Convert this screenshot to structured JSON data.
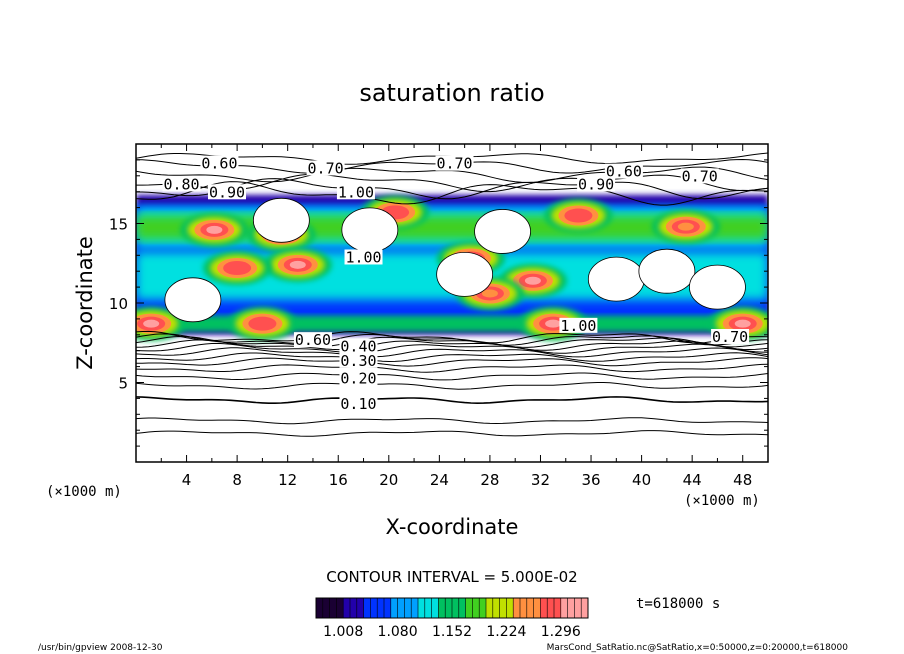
{
  "chart_data": {
    "type": "heatmap",
    "subtype": "filled-contour with line contours",
    "title": "saturation ratio",
    "xlabel": "X-coordinate",
    "ylabel": "Z-coordinate",
    "x_unit": "(×1000 m)",
    "y_unit": "(×1000 m)",
    "xlim": [
      0,
      50
    ],
    "ylim": [
      0,
      20
    ],
    "x_ticks": [
      4,
      8,
      12,
      16,
      20,
      24,
      28,
      32,
      36,
      40,
      44,
      48
    ],
    "y_ticks": [
      5,
      10,
      15
    ],
    "contour_interval_text": "CONTOUR INTERVAL = 5.000E-02",
    "time_text": "t=618000 s",
    "colorbar": {
      "tick_labels": [
        "1.008",
        "1.080",
        "1.152",
        "1.224",
        "1.296"
      ],
      "min": 0.972,
      "max": 1.332,
      "colors": [
        "#1a0033",
        "#2200aa",
        "#0033ff",
        "#00a0ff",
        "#00e0e0",
        "#00c060",
        "#40d020",
        "#c0e000",
        "#ff9040",
        "#ff5050",
        "#ffa0a0"
      ]
    },
    "contour_labels": [
      {
        "text": "0.60",
        "x": 6.6,
        "z": 18.7
      },
      {
        "text": "0.70",
        "x": 15.0,
        "z": 18.4
      },
      {
        "text": "0.70",
        "x": 25.2,
        "z": 18.7
      },
      {
        "text": "0.60",
        "x": 38.6,
        "z": 18.2
      },
      {
        "text": "0.70",
        "x": 44.6,
        "z": 17.9
      },
      {
        "text": "0.80",
        "x": 3.6,
        "z": 17.4
      },
      {
        "text": "0.90",
        "x": 7.2,
        "z": 16.9
      },
      {
        "text": "1.00",
        "x": 17.4,
        "z": 16.9
      },
      {
        "text": "0.90",
        "x": 36.4,
        "z": 17.4
      },
      {
        "text": "1.00",
        "x": 18.0,
        "z": 12.8
      },
      {
        "text": "1.00",
        "x": 35.0,
        "z": 8.5
      },
      {
        "text": "0.60",
        "x": 14.0,
        "z": 7.6
      },
      {
        "text": "0.40",
        "x": 17.6,
        "z": 7.2
      },
      {
        "text": "0.30",
        "x": 17.6,
        "z": 6.3
      },
      {
        "text": "0.20",
        "x": 17.6,
        "z": 5.2
      },
      {
        "text": "0.10",
        "x": 17.6,
        "z": 3.6
      },
      {
        "text": "0.70",
        "x": 47.0,
        "z": 7.8
      }
    ],
    "regions": {
      "supersaturated_band_z": [
        8.0,
        16.8
      ],
      "strong_band_z": [
        13.5,
        16.0
      ],
      "hot_spots": [
        {
          "x": 6.2,
          "z": 14.6,
          "value": 1.3
        },
        {
          "x": 11.5,
          "z": 14.3,
          "value": 1.29
        },
        {
          "x": 12.8,
          "z": 12.4,
          "value": 1.31
        },
        {
          "x": 8.0,
          "z": 12.2,
          "value": 1.27
        },
        {
          "x": 26.5,
          "z": 12.8,
          "value": 1.29
        },
        {
          "x": 31.4,
          "z": 11.4,
          "value": 1.31
        },
        {
          "x": 28.0,
          "z": 10.6,
          "value": 1.26
        },
        {
          "x": 35.0,
          "z": 15.5,
          "value": 1.27
        },
        {
          "x": 20.5,
          "z": 15.7,
          "value": 1.29
        },
        {
          "x": 1.2,
          "z": 8.7,
          "value": 1.3
        },
        {
          "x": 10.0,
          "z": 8.7,
          "value": 1.28
        },
        {
          "x": 33.0,
          "z": 8.7,
          "value": 1.3
        },
        {
          "x": 48.0,
          "z": 8.7,
          "value": 1.3
        },
        {
          "x": 43.5,
          "z": 14.8,
          "value": 1.25
        }
      ],
      "subsaturated_holes": [
        {
          "x": 4.5,
          "z": 10.2
        },
        {
          "x": 11.5,
          "z": 15.2
        },
        {
          "x": 18.5,
          "z": 14.6
        },
        {
          "x": 26.0,
          "z": 11.8
        },
        {
          "x": 29.0,
          "z": 14.5
        },
        {
          "x": 38.0,
          "z": 11.5
        },
        {
          "x": 42.0,
          "z": 12.0
        },
        {
          "x": 46.0,
          "z": 11.0
        }
      ]
    }
  },
  "footer": {
    "left": "/usr/bin/gpview   2008-12-30",
    "right": "MarsCond_SatRatio.nc@SatRatio,x=0:50000,z=0:20000,t=618000"
  }
}
